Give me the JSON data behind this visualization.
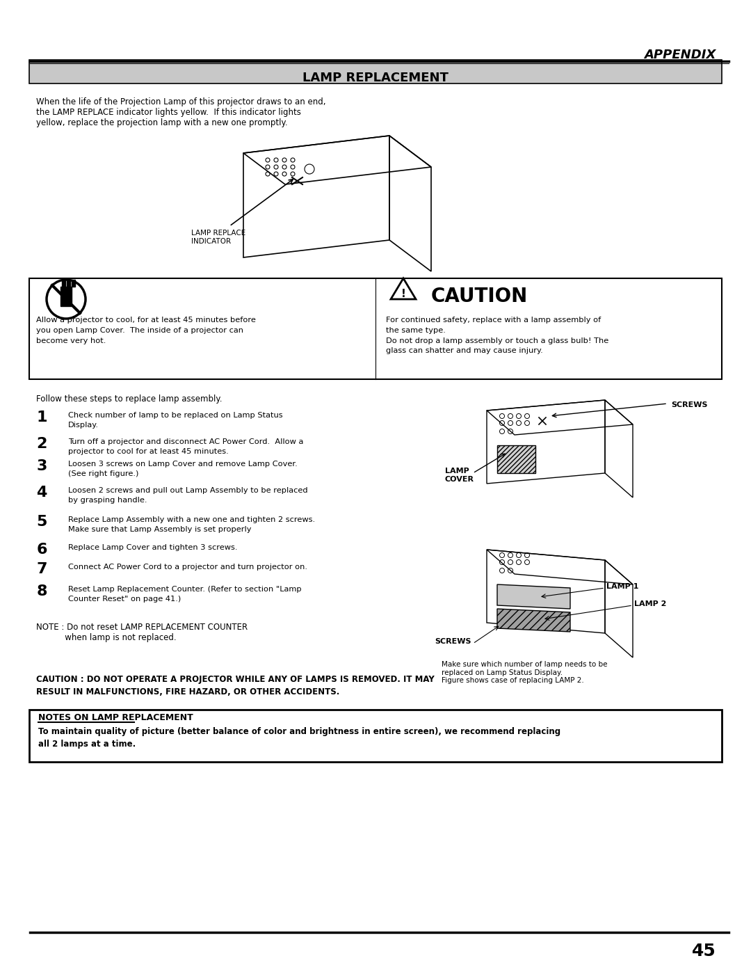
{
  "page_width": 10.8,
  "page_height": 13.97,
  "bg_color": "#ffffff",
  "header_text": "APPENDIX",
  "page_number": "45",
  "title_bar_text": "LAMP REPLACEMENT",
  "title_bar_bg": "#c8c8c8",
  "intro_text": "When the life of the Projection Lamp of this projector draws to an end,\nthe LAMP REPLACE indicator lights yellow.  If this indicator lights\nyellow, replace the projection lamp with a new one promptly.",
  "caution_box_text_left": "Allow a projector to cool, for at least 45 minutes before\nyou open Lamp Cover.  The inside of a projector can\nbecome very hot.",
  "caution_title": "CAUTION",
  "caution_text_right": "For continued safety, replace with a lamp assembly of\nthe same type.\nDo not drop a lamp assembly or touch a glass bulb! The\nglass can shatter and may cause injury.",
  "follow_text": "Follow these steps to replace lamp assembly.",
  "steps": [
    {
      "num": "1",
      "bold": true,
      "text": "Check number of lamp to be replaced on Lamp Status\nDisplay."
    },
    {
      "num": "2",
      "bold": true,
      "text": "Turn off a projector and disconnect AC Power Cord.  Allow a\nprojector to cool for at least 45 minutes."
    },
    {
      "num": "3",
      "bold": true,
      "text": "Loosen 3 screws on Lamp Cover and remove Lamp Cover.\n(See right figure.)"
    },
    {
      "num": "4",
      "bold": true,
      "text": "Loosen 2 screws and pull out Lamp Assembly to be replaced\nby grasping handle."
    },
    {
      "num": "5",
      "bold": true,
      "text": "Replace Lamp Assembly with a new one and tighten 2 screws.\nMake sure that Lamp Assembly is set properly"
    },
    {
      "num": "6",
      "bold": true,
      "text": "Replace Lamp Cover and tighten 3 screws."
    },
    {
      "num": "7",
      "bold": true,
      "text": "Connect AC Power Cord to a projector and turn projector on."
    },
    {
      "num": "8",
      "bold": true,
      "text": "Reset Lamp Replacement Counter. (Refer to section \"Lamp\nCounter Reset\" on page 41.)"
    }
  ],
  "note_text": "NOTE : Do not reset LAMP REPLACEMENT COUNTER\n           when lamp is not replaced.",
  "caution_bottom": "CAUTION : DO NOT OPERATE A PROJECTOR WHILE ANY OF LAMPS IS REMOVED. IT MAY\nRESULT IN MALFUNCTIONS, FIRE HAZARD, OR OTHER ACCIDENTS.",
  "notes_title": "NOTES ON LAMP REPLACEMENT",
  "notes_body": "To maintain quality of picture (better balance of color and brightness in entire screen), we recommend replacing\nall 2 lamps at a time.",
  "right_caption1": "SCREWS",
  "right_caption2": "LAMP\nCOVER",
  "right_caption3": "LAMP 1",
  "right_caption4": "LAMP 2",
  "right_caption5": "SCREWS",
  "right_caption6": "Make sure which number of lamp needs to be\nreplaced on Lamp Status Display.\nFigure shows case of replacing LAMP 2."
}
